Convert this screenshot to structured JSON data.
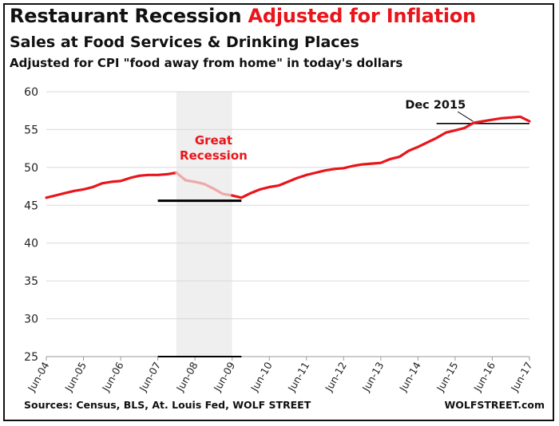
{
  "header": {
    "title_part1": "Restaurant Recession",
    "title_part2": "Adjusted for Inflation",
    "subtitle": "Sales at Food Services & Drinking Places",
    "subtitle2": "Adjusted for CPI \"food away from home\" in today's dollars"
  },
  "footer": {
    "sources": "Sources: Census, BLS, At. Louis Fed, WOLF STREET",
    "brand": "WOLFSTREET.com"
  },
  "colors": {
    "line": "#e8151b",
    "recession_line": "#f0a8a8",
    "shade": "#efefef",
    "grid": "#d9d9d9",
    "title_accent": "#e8151b"
  },
  "chart_data": {
    "type": "line",
    "title": "Restaurant Recession Adjusted for Inflation",
    "ylim": [
      25,
      60
    ],
    "xlim": [
      "Jun-04",
      "Jun-17"
    ],
    "yticks": [
      "25",
      "30",
      "35",
      "40",
      "45",
      "50",
      "55",
      "60"
    ],
    "xticks": [
      "Jun-04",
      "Jun-05",
      "Jun-06",
      "Jun-07",
      "Jun-08",
      "Jun-09",
      "Jun-10",
      "Jun-11",
      "Jun-12",
      "Jun-13",
      "Jun-14",
      "Jun-15",
      "Jun-16",
      "Jun-17"
    ],
    "grid": true,
    "shaded_period": {
      "from": "Dec-07",
      "to": "Jun-09"
    },
    "series": [
      {
        "x": [
          "Jun-04",
          "Sep-04",
          "Dec-04",
          "Mar-05",
          "Jun-05",
          "Sep-05",
          "Dec-05",
          "Mar-06",
          "Jun-06",
          "Sep-06",
          "Dec-06",
          "Mar-07",
          "Jun-07",
          "Sep-07",
          "Dec-07"
        ],
        "values": [
          46.0,
          46.3,
          46.6,
          46.9,
          47.1,
          47.4,
          47.9,
          48.1,
          48.2,
          48.6,
          48.9,
          49.0,
          49.0,
          49.1,
          49.3
        ]
      },
      {
        "x": [
          "Dec-07",
          "Mar-08",
          "Jun-08",
          "Sep-08",
          "Dec-08",
          "Mar-09",
          "Jun-09"
        ],
        "values": [
          49.3,
          48.3,
          48.1,
          47.8,
          47.2,
          46.5,
          46.3
        ]
      },
      {
        "x": [
          "Jun-09",
          "Sep-09",
          "Dec-09",
          "Mar-10",
          "Jun-10",
          "Sep-10",
          "Dec-10",
          "Mar-11",
          "Jun-11",
          "Sep-11",
          "Dec-11",
          "Mar-12",
          "Jun-12",
          "Sep-12",
          "Dec-12",
          "Mar-13",
          "Jun-13",
          "Sep-13",
          "Dec-13",
          "Mar-14",
          "Jun-14",
          "Sep-14",
          "Dec-14",
          "Mar-15",
          "Jun-15",
          "Sep-15",
          "Dec-15",
          "Mar-16",
          "Jun-16",
          "Sep-16",
          "Dec-16",
          "Mar-17",
          "Jun-17"
        ],
        "values": [
          46.3,
          46.0,
          46.6,
          47.1,
          47.4,
          47.6,
          48.1,
          48.6,
          49.0,
          49.3,
          49.6,
          49.8,
          49.9,
          50.2,
          50.4,
          50.5,
          50.6,
          51.1,
          51.4,
          52.2,
          52.7,
          53.3,
          53.9,
          54.6,
          54.9,
          55.2,
          55.9,
          56.1,
          56.3,
          56.5,
          56.6,
          56.7,
          56.1
        ]
      }
    ],
    "annotations": [
      {
        "text": "Great",
        "at": "Dec-08"
      },
      {
        "text": "Recession",
        "at": "Dec-08"
      },
      {
        "text": "Dec 2015",
        "at": "Dec-15"
      }
    ],
    "reference_lines": [
      {
        "from": "Jun-07",
        "to": "Sep-09",
        "y": 45.6
      },
      {
        "from": "Dec-14",
        "to": "Jun-17",
        "y": 55.8
      },
      {
        "from": "Jun-07",
        "to": "Sep-09",
        "y": 25
      }
    ]
  }
}
